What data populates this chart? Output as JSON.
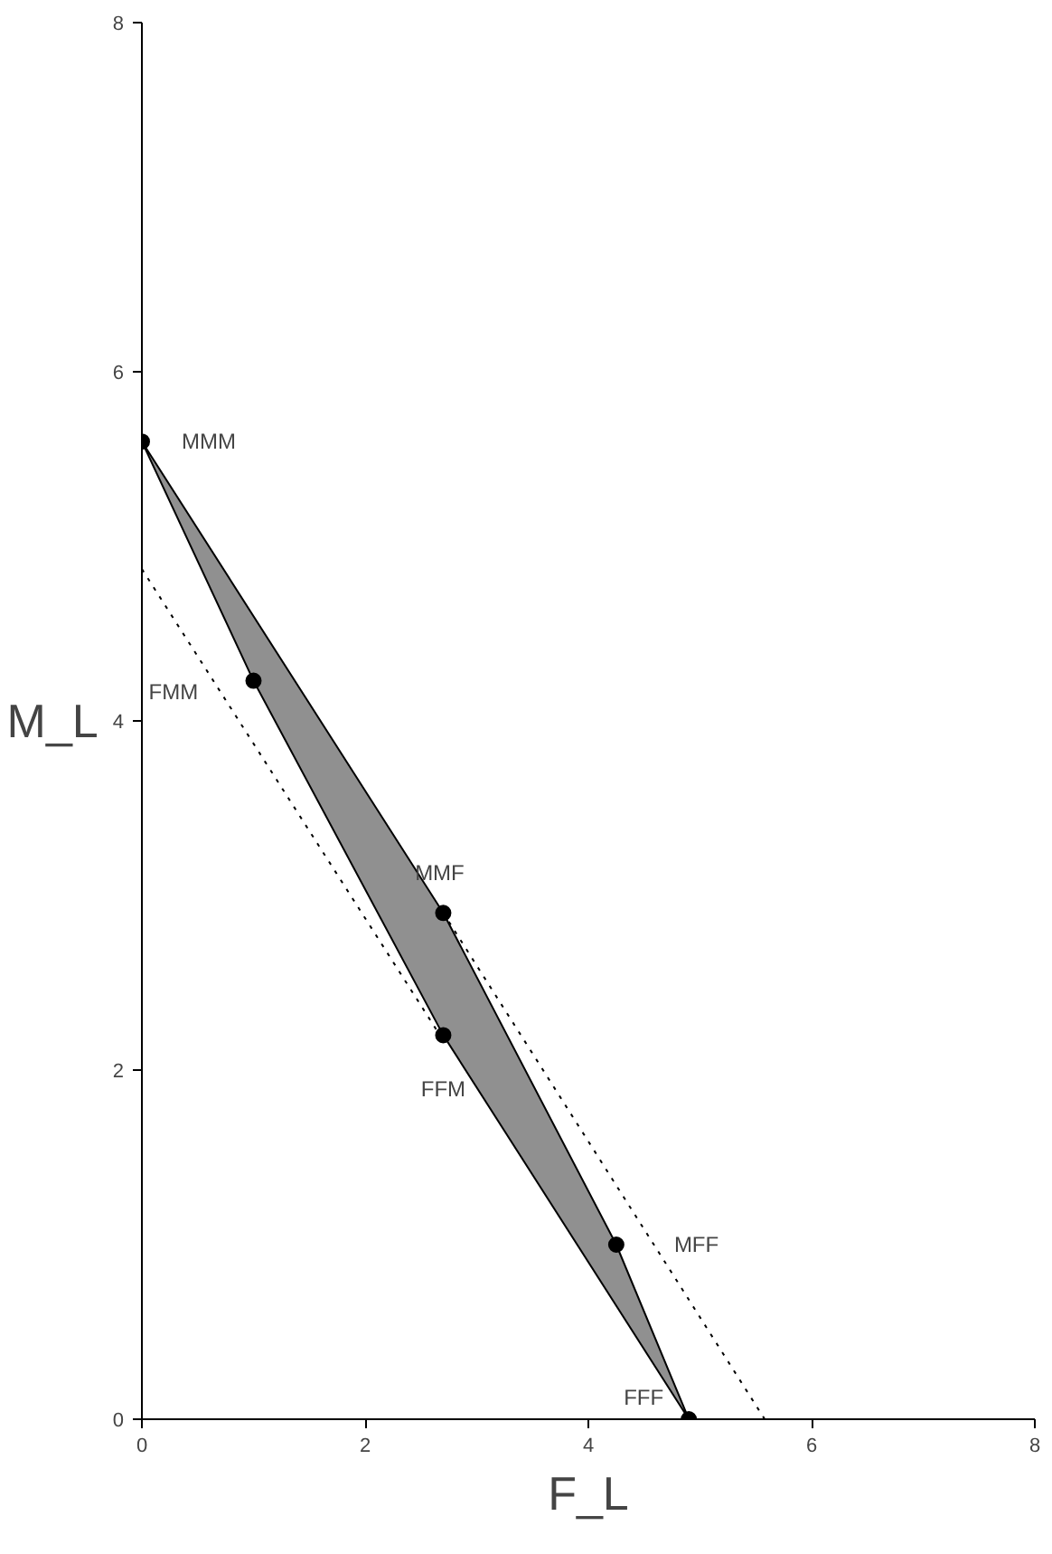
{
  "chart_data": {
    "type": "scatter",
    "xlabel": "F_L",
    "ylabel": "M_L",
    "xlim": [
      0,
      8
    ],
    "ylim": [
      0,
      8
    ],
    "xticks": [
      0,
      2,
      4,
      6,
      8
    ],
    "yticks": [
      0,
      2,
      4,
      6,
      8
    ],
    "grid": false,
    "series": [
      {
        "type": "area",
        "color": "#909090",
        "x": [
          0,
          2.7,
          4.25,
          4.9,
          2.7,
          1.0,
          0
        ],
        "values": [
          5.6,
          2.9,
          1.0,
          0,
          2.2,
          4.23,
          5.6
        ]
      },
      {
        "type": "line",
        "line_style": "dotted",
        "color": "#000000",
        "x": [
          0,
          2.67
        ],
        "values": [
          4.87,
          2.2
        ]
      },
      {
        "type": "line",
        "line_style": "dotted",
        "color": "#000000",
        "x": [
          2.75,
          5.58
        ],
        "values": [
          2.85,
          0
        ]
      },
      {
        "marker": "circle",
        "color": "#000000",
        "x": [
          0,
          1.0,
          2.7,
          2.7,
          4.25,
          4.9
        ],
        "values": [
          5.6,
          4.23,
          2.9,
          2.2,
          1.0,
          0
        ]
      }
    ],
    "annotations": [
      {
        "text": "MMM",
        "x": 0,
        "y": 5.6
      },
      {
        "text": "FMM",
        "x": 1.0,
        "y": 4.23
      },
      {
        "text": "MMF",
        "x": 2.7,
        "y": 2.9
      },
      {
        "text": "FFM",
        "x": 2.7,
        "y": 2.2
      },
      {
        "text": "MFF",
        "x": 4.25,
        "y": 1.0
      },
      {
        "text": "FFF",
        "x": 4.9,
        "y": 0
      }
    ]
  }
}
